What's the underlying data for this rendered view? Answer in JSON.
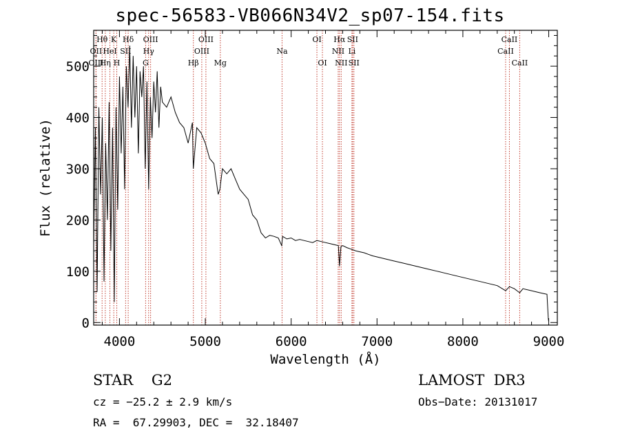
{
  "header": {
    "title": "spec-56583-VB066N34V2_sp07-154.fits"
  },
  "chart_data": {
    "type": "line",
    "title": "spec-56583-VB066N34V2_sp07-154.fits",
    "xlabel": "Wavelength (Å)",
    "ylabel": "Flux (relative)",
    "xlim": [
      3700,
      9100
    ],
    "ylim": [
      -5,
      570
    ],
    "xticks": [
      4000,
      5000,
      6000,
      7000,
      8000,
      9000
    ],
    "yticks": [
      0,
      100,
      200,
      300,
      400,
      500
    ],
    "series": [
      {
        "name": "spectrum",
        "x": [
          3700,
          3720,
          3740,
          3760,
          3780,
          3800,
          3820,
          3840,
          3860,
          3880,
          3900,
          3920,
          3940,
          3960,
          3980,
          4000,
          4020,
          4040,
          4060,
          4080,
          4100,
          4120,
          4140,
          4160,
          4180,
          4200,
          4220,
          4240,
          4260,
          4280,
          4300,
          4320,
          4340,
          4360,
          4380,
          4400,
          4420,
          4440,
          4460,
          4480,
          4500,
          4550,
          4600,
          4650,
          4700,
          4750,
          4800,
          4850,
          4860,
          4900,
          4950,
          5000,
          5050,
          5100,
          5150,
          5170,
          5200,
          5250,
          5300,
          5350,
          5400,
          5450,
          5500,
          5550,
          5600,
          5650,
          5700,
          5750,
          5800,
          5850,
          5890,
          5900,
          5950,
          6000,
          6050,
          6100,
          6150,
          6200,
          6250,
          6300,
          6350,
          6400,
          6450,
          6500,
          6550,
          6563,
          6580,
          6600,
          6650,
          6700,
          6750,
          6800,
          6850,
          6900,
          6950,
          7000,
          7100,
          7200,
          7300,
          7400,
          7500,
          7600,
          7700,
          7800,
          7900,
          8000,
          8100,
          8200,
          8300,
          8400,
          8498,
          8542,
          8600,
          8662,
          8700,
          8800,
          8900,
          8980,
          8995,
          9000
        ],
        "y": [
          150,
          380,
          60,
          420,
          250,
          400,
          80,
          350,
          200,
          430,
          140,
          380,
          40,
          420,
          220,
          480,
          330,
          460,
          260,
          500,
          420,
          540,
          380,
          520,
          400,
          500,
          330,
          490,
          440,
          500,
          300,
          470,
          260,
          440,
          360,
          470,
          410,
          490,
          380,
          460,
          430,
          420,
          440,
          410,
          390,
          380,
          350,
          390,
          300,
          380,
          370,
          350,
          320,
          310,
          250,
          260,
          300,
          290,
          300,
          280,
          260,
          250,
          240,
          210,
          200,
          175,
          165,
          170,
          168,
          165,
          150,
          168,
          163,
          165,
          160,
          162,
          160,
          158,
          156,
          160,
          158,
          156,
          154,
          152,
          150,
          110,
          148,
          150,
          146,
          143,
          140,
          138,
          136,
          133,
          130,
          128,
          124,
          120,
          116,
          112,
          108,
          104,
          100,
          96,
          92,
          88,
          84,
          80,
          76,
          72,
          62,
          70,
          66,
          58,
          66,
          62,
          58,
          55,
          8,
          2
        ]
      }
    ],
    "lines": [
      {
        "name": "Hθ",
        "wave": 3798,
        "row": 0
      },
      {
        "name": "OII",
        "wave": 3727,
        "row": 1
      },
      {
        "name": "OIII",
        "wave": 3727,
        "row": 2
      },
      {
        "name": "Hη",
        "wave": 3835,
        "row": 2
      },
      {
        "name": "HeI",
        "wave": 3889,
        "row": 1
      },
      {
        "name": "K",
        "wave": 3934,
        "row": 0
      },
      {
        "name": "H",
        "wave": 3969,
        "row": 2
      },
      {
        "name": "Hδ",
        "wave": 4102,
        "row": 0
      },
      {
        "name": "SII",
        "wave": 4072,
        "row": 1
      },
      {
        "name": "OIII",
        "wave": 4363,
        "row": 0
      },
      {
        "name": "Hγ",
        "wave": 4340,
        "row": 1
      },
      {
        "name": "G",
        "wave": 4305,
        "row": 2
      },
      {
        "name": "Hβ",
        "wave": 4861,
        "row": 2
      },
      {
        "name": "OIII",
        "wave": 4959,
        "row": 1
      },
      {
        "name": "OIII",
        "wave": 5007,
        "row": 0
      },
      {
        "name": "Mg",
        "wave": 5175,
        "row": 2
      },
      {
        "name": "Na",
        "wave": 5894,
        "row": 1
      },
      {
        "name": "OI",
        "wave": 6300,
        "row": 0
      },
      {
        "name": "OI",
        "wave": 6364,
        "row": 2
      },
      {
        "name": "Hα",
        "wave": 6563,
        "row": 0
      },
      {
        "name": "NII",
        "wave": 6548,
        "row": 1
      },
      {
        "name": "NII",
        "wave": 6583,
        "row": 2
      },
      {
        "name": "SII",
        "wave": 6716,
        "row": 0
      },
      {
        "name": "Li",
        "wave": 6708,
        "row": 1
      },
      {
        "name": "SII",
        "wave": 6731,
        "row": 2
      },
      {
        "name": "CaII",
        "wave": 8542,
        "row": 0
      },
      {
        "name": "CaII",
        "wave": 8498,
        "row": 1
      },
      {
        "name": "CaII",
        "wave": 8662,
        "row": 2
      }
    ]
  },
  "info": {
    "class_label": "STAR    G2",
    "survey": "LAMOST  DR3",
    "cz": "cz = −25.2 ± 2.9 km/s",
    "obs_date": "Obs−Date: 20131017",
    "coords": "RA =  67.29903, DEC =  32.18407"
  },
  "colors": {
    "axis": "#000000",
    "line_marker": "#c0392b",
    "spectrum": "#000000"
  }
}
